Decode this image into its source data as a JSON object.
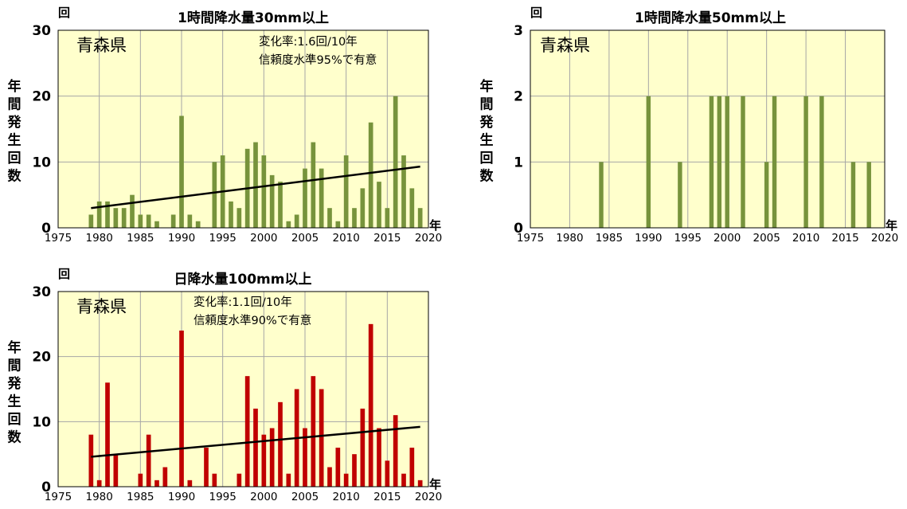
{
  "chart_data": [
    {
      "type": "bar",
      "title": "1時間降水量30mm以上",
      "y_unit": "回",
      "x_unit": "年",
      "ylabel": "年間発生回数",
      "region": "青森県",
      "annotation": [
        "変化率:1.6回/10年",
        "信頼度水準95%で有意"
      ],
      "xlim": [
        1975,
        2020
      ],
      "ylim": [
        0,
        30
      ],
      "xticks": [
        "1975",
        "1980",
        "1985",
        "1990",
        "1995",
        "2000",
        "2005",
        "2010",
        "2015",
        "2020"
      ],
      "yticks": [
        "0",
        "10",
        "20",
        "30"
      ],
      "grid": true,
      "bar_color": "#77933c",
      "x": [
        1979,
        1980,
        1981,
        1982,
        1983,
        1984,
        1985,
        1986,
        1987,
        1988,
        1989,
        1990,
        1991,
        1992,
        1993,
        1994,
        1995,
        1996,
        1997,
        1998,
        1999,
        2000,
        2001,
        2002,
        2003,
        2004,
        2005,
        2006,
        2007,
        2008,
        2009,
        2010,
        2011,
        2012,
        2013,
        2014,
        2015,
        2016,
        2017,
        2018,
        2019
      ],
      "values": [
        2,
        4,
        4,
        3,
        3,
        5,
        2,
        2,
        1,
        0,
        2,
        17,
        2,
        1,
        0,
        10,
        11,
        4,
        3,
        12,
        13,
        11,
        8,
        7,
        1,
        2,
        9,
        13,
        9,
        3,
        1,
        11,
        3,
        6,
        16,
        7,
        3,
        20,
        11,
        6,
        3
      ],
      "trend": {
        "x": [
          1979,
          2019
        ],
        "y": [
          3.0,
          9.3
        ]
      }
    },
    {
      "type": "bar",
      "title": "1時間降水量50mm以上",
      "y_unit": "回",
      "x_unit": "年",
      "ylabel": "年間発生回数",
      "region": "青森県",
      "xlim": [
        1975,
        2020
      ],
      "ylim": [
        0,
        3
      ],
      "xticks": [
        "1975",
        "1980",
        "1985",
        "1990",
        "1995",
        "2000",
        "2005",
        "2010",
        "2015",
        "2020"
      ],
      "yticks": [
        "0",
        "1",
        "2",
        "3"
      ],
      "grid": true,
      "bar_color": "#77933c",
      "x": [
        1984,
        1990,
        1994,
        1998,
        1999,
        2000,
        2002,
        2005,
        2006,
        2010,
        2012,
        2016,
        2018
      ],
      "values": [
        1,
        2,
        1,
        2,
        2,
        2,
        2,
        1,
        2,
        2,
        2,
        1,
        1
      ]
    },
    {
      "type": "bar",
      "title": "日降水量100mm以上",
      "y_unit": "回",
      "x_unit": "年",
      "ylabel": "年間発生回数",
      "region": "青森県",
      "annotation": [
        "変化率:1.1回/10年",
        "信頼度水準90%で有意"
      ],
      "xlim": [
        1975,
        2020
      ],
      "ylim": [
        0,
        30
      ],
      "xticks": [
        "1975",
        "1980",
        "1985",
        "1990",
        "1995",
        "2000",
        "2005",
        "2010",
        "2015",
        "2020"
      ],
      "yticks": [
        "0",
        "10",
        "20",
        "30"
      ],
      "grid": true,
      "bar_color": "#c00000",
      "x": [
        1979,
        1980,
        1981,
        1982,
        1983,
        1984,
        1985,
        1986,
        1987,
        1988,
        1989,
        1990,
        1991,
        1992,
        1993,
        1994,
        1995,
        1996,
        1997,
        1998,
        1999,
        2000,
        2001,
        2002,
        2003,
        2004,
        2005,
        2006,
        2007,
        2008,
        2009,
        2010,
        2011,
        2012,
        2013,
        2014,
        2015,
        2016,
        2017,
        2018,
        2019
      ],
      "values": [
        8,
        1,
        16,
        5,
        0,
        0,
        2,
        8,
        1,
        3,
        0,
        24,
        1,
        0,
        6,
        2,
        0,
        0,
        2,
        17,
        12,
        8,
        9,
        13,
        2,
        15,
        9,
        17,
        15,
        3,
        6,
        2,
        5,
        12,
        25,
        9,
        4,
        11,
        2,
        6,
        1
      ],
      "trend": {
        "x": [
          1979,
          2019
        ],
        "y": [
          4.6,
          9.2
        ]
      }
    }
  ]
}
